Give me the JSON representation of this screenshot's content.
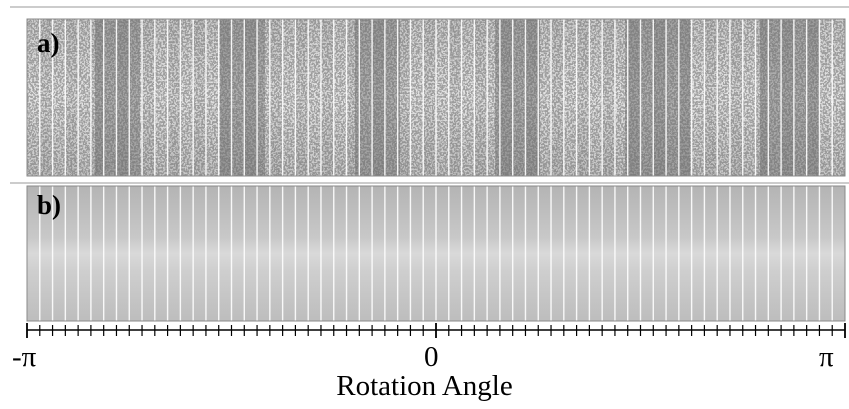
{
  "panels": {
    "a": {
      "label": "a)"
    },
    "b": {
      "label": "b)"
    }
  },
  "axis": {
    "title": "Rotation Angle",
    "tick_labels": {
      "left": "-π",
      "center": "0",
      "right": "π"
    }
  },
  "colors": {
    "frame": "#7a7a7a",
    "axis": "#000000",
    "strip_divider": "#ffffff",
    "panel_a_base": "#d8d8d8",
    "panel_a_speckle": "#3a3a3a",
    "panel_b_base": "#c6c6c6"
  }
}
